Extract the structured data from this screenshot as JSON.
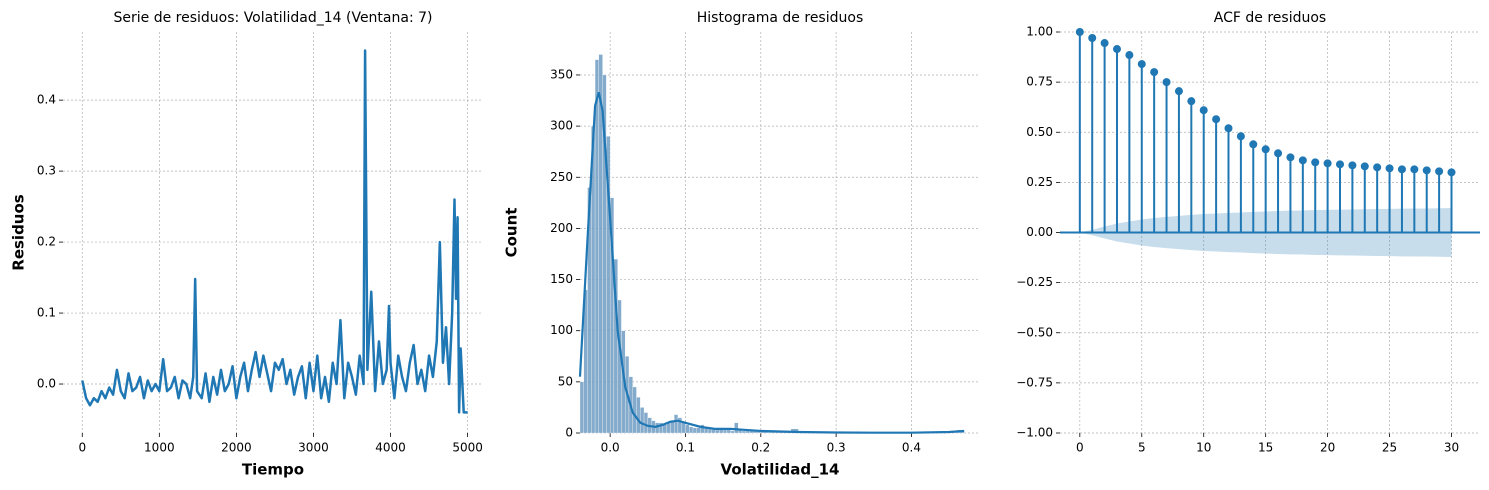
{
  "chart_data": [
    {
      "type": "line",
      "title": "Serie de residuos: Volatilidad_14 (Ventana: 7)",
      "xlabel": "Tiempo",
      "ylabel": "Residuos",
      "xlim": [
        -250,
        5200
      ],
      "ylim": [
        -0.069,
        0.496
      ],
      "xticks": [
        0,
        1000,
        2000,
        3000,
        4000,
        5000
      ],
      "yticks": [
        {
          "value": 0,
          "label": "0.0"
        },
        0.1,
        0.2,
        0.3,
        0.4
      ],
      "grid": true,
      "color": "#1f77b4",
      "x": [
        0,
        50,
        100,
        150,
        200,
        250,
        300,
        350,
        400,
        450,
        500,
        550,
        600,
        650,
        700,
        750,
        800,
        850,
        900,
        950,
        1000,
        1050,
        1100,
        1150,
        1200,
        1250,
        1300,
        1350,
        1400,
        1440,
        1465,
        1490,
        1550,
        1600,
        1650,
        1700,
        1750,
        1800,
        1850,
        1900,
        1950,
        2000,
        2050,
        2100,
        2150,
        2200,
        2250,
        2300,
        2350,
        2400,
        2450,
        2500,
        2550,
        2600,
        2650,
        2700,
        2750,
        2800,
        2850,
        2900,
        2950,
        3000,
        3050,
        3100,
        3150,
        3200,
        3250,
        3300,
        3350,
        3400,
        3450,
        3500,
        3550,
        3600,
        3650,
        3670,
        3700,
        3750,
        3800,
        3850,
        3900,
        3950,
        3980,
        4000,
        4050,
        4100,
        4150,
        4200,
        4250,
        4300,
        4350,
        4400,
        4450,
        4500,
        4550,
        4600,
        4640,
        4680,
        4720,
        4760,
        4800,
        4830,
        4850,
        4870,
        4890,
        4910,
        4950,
        5000
      ],
      "values": [
        0.005,
        -0.02,
        -0.03,
        -0.02,
        -0.025,
        -0.01,
        -0.02,
        -0.005,
        -0.015,
        0.02,
        -0.01,
        -0.02,
        0.015,
        -0.01,
        -0.005,
        0.01,
        -0.02,
        0.005,
        -0.01,
        0.0,
        -0.01,
        0.035,
        -0.01,
        -0.005,
        0.01,
        -0.02,
        0.005,
        0.0,
        -0.02,
        0.01,
        0.148,
        -0.01,
        -0.02,
        0.015,
        -0.025,
        0.01,
        -0.015,
        0.02,
        -0.01,
        0.0,
        0.025,
        -0.02,
        0.01,
        0.03,
        -0.01,
        0.02,
        0.045,
        0.01,
        0.04,
        0.015,
        -0.01,
        0.03,
        0.02,
        0.035,
        0.0,
        0.02,
        -0.015,
        0.01,
        0.025,
        -0.02,
        0.03,
        -0.01,
        0.04,
        -0.02,
        0.01,
        -0.025,
        0.03,
        0.0,
        0.09,
        -0.02,
        0.03,
        0.01,
        -0.015,
        0.04,
        0.0,
        0.47,
        0.02,
        0.13,
        -0.01,
        0.06,
        0.0,
        0.02,
        0.11,
        0.03,
        -0.02,
        0.04,
        0.01,
        -0.01,
        0.03,
        0.055,
        0.0,
        0.02,
        -0.01,
        0.04,
        0.01,
        0.06,
        0.2,
        0.03,
        0.08,
        0.0,
        0.1,
        0.26,
        0.12,
        0.235,
        -0.04,
        0.05,
        -0.04,
        -0.04
      ]
    },
    {
      "type": "histogram",
      "title": "Histograma de residuos",
      "xlabel": "Volatilidad_14",
      "ylabel": "Count",
      "xlim": [
        -0.04,
        0.491
      ],
      "ylim": [
        0,
        392
      ],
      "xticks": [
        {
          "value": 0,
          "label": "0.0"
        },
        0.1,
        0.2,
        0.3,
        0.4
      ],
      "yticks": [
        0,
        50,
        100,
        150,
        200,
        250,
        300,
        350
      ],
      "grid": true,
      "color": "#6f9cc3",
      "bins": [
        -0.04,
        -0.035,
        -0.03,
        -0.025,
        -0.02,
        -0.015,
        -0.01,
        -0.005,
        0,
        0.005,
        0.01,
        0.015,
        0.02,
        0.025,
        0.03,
        0.035,
        0.04,
        0.045,
        0.05,
        0.055,
        0.06,
        0.065,
        0.07,
        0.075,
        0.08,
        0.085,
        0.09,
        0.095,
        0.1,
        0.105,
        0.11,
        0.115,
        0.12,
        0.125,
        0.13,
        0.135,
        0.14,
        0.145,
        0.15,
        0.155,
        0.16,
        0.165,
        0.17,
        0.175,
        0.18,
        0.185,
        0.19,
        0.195,
        0.2,
        0.21,
        0.22,
        0.23,
        0.24,
        0.25,
        0.26,
        0.27,
        0.28,
        0.29,
        0.3,
        0.31,
        0.32,
        0.33,
        0.34,
        0.35,
        0.36,
        0.37,
        0.38,
        0.39,
        0.4,
        0.41,
        0.42,
        0.43,
        0.44,
        0.45,
        0.46,
        0.47
      ],
      "values": [
        50,
        140,
        240,
        300,
        365,
        370,
        350,
        290,
        230,
        170,
        130,
        100,
        75,
        55,
        45,
        35,
        25,
        20,
        15,
        12,
        10,
        10,
        8,
        10,
        12,
        18,
        15,
        10,
        8,
        6,
        5,
        5,
        8,
        5,
        4,
        4,
        3,
        5,
        3,
        3,
        2,
        10,
        3,
        2,
        2,
        3,
        2,
        2,
        2,
        1,
        2,
        1,
        4,
        1,
        1,
        0,
        1,
        0,
        0,
        1,
        0,
        0,
        0,
        0,
        0,
        0,
        0,
        0,
        0,
        0,
        0,
        0,
        0,
        1,
        3
      ],
      "kde": {
        "color": "#1f77b4",
        "x": [
          -0.04,
          -0.03,
          -0.02,
          -0.015,
          -0.01,
          0,
          0.01,
          0.02,
          0.03,
          0.04,
          0.05,
          0.06,
          0.07,
          0.08,
          0.09,
          0.1,
          0.12,
          0.14,
          0.16,
          0.18,
          0.2,
          0.25,
          0.3,
          0.35,
          0.4,
          0.45,
          0.47
        ],
        "values": [
          55,
          190,
          320,
          333,
          315,
          210,
          100,
          45,
          20,
          10,
          7,
          6,
          8,
          11,
          12,
          10,
          6,
          4,
          4,
          3,
          2,
          1,
          0.5,
          0.3,
          0.3,
          1,
          2
        ]
      }
    },
    {
      "type": "stem",
      "title": "ACF de residuos",
      "xlim": [
        -1.6,
        32.3
      ],
      "ylim": [
        -1,
        1
      ],
      "xticks": [
        0,
        5,
        10,
        15,
        20,
        25,
        30
      ],
      "yticks": [
        {
          "value": -1,
          "label": "−1.00"
        },
        {
          "value": -0.75,
          "label": "−0.75"
        },
        {
          "value": -0.5,
          "label": "−0.50"
        },
        {
          "value": -0.25,
          "label": "−0.25"
        },
        {
          "value": 0,
          "label": "0.00"
        },
        {
          "value": 0.25,
          "label": "0.25"
        },
        {
          "value": 0.5,
          "label": "0.50"
        },
        {
          "value": 0.75,
          "label": "0.75"
        },
        {
          "value": 1,
          "label": "1.00"
        }
      ],
      "grid": true,
      "color": "#1f77b4",
      "x": [
        0,
        1,
        2,
        3,
        4,
        5,
        6,
        7,
        8,
        9,
        10,
        11,
        12,
        13,
        14,
        15,
        16,
        17,
        18,
        19,
        20,
        21,
        22,
        23,
        24,
        25,
        26,
        27,
        28,
        29,
        30
      ],
      "values": [
        1.0,
        0.97,
        0.945,
        0.915,
        0.885,
        0.84,
        0.8,
        0.75,
        0.705,
        0.655,
        0.61,
        0.565,
        0.52,
        0.48,
        0.44,
        0.415,
        0.395,
        0.375,
        0.36,
        0.35,
        0.345,
        0.34,
        0.335,
        0.33,
        0.325,
        0.32,
        0.315,
        0.315,
        0.31,
        0.305,
        0.3
      ],
      "confidence": [
        0,
        0.014,
        0.03,
        0.045,
        0.055,
        0.065,
        0.072,
        0.078,
        0.083,
        0.088,
        0.092,
        0.095,
        0.098,
        0.1,
        0.103,
        0.105,
        0.107,
        0.109,
        0.11,
        0.112,
        0.113,
        0.114,
        0.115,
        0.116,
        0.117,
        0.118,
        0.119,
        0.12,
        0.12,
        0.121,
        0.122
      ]
    }
  ]
}
